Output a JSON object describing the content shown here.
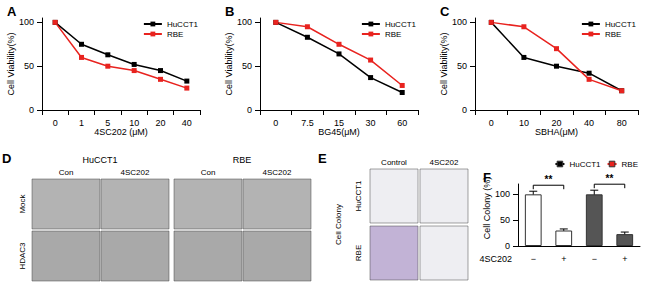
{
  "chart_data": [
    {
      "title": "A",
      "type": "line",
      "x_label": "4SC202 (μM)",
      "y_label": "Cell Viability(%)",
      "categories": [
        "0",
        "1",
        "5",
        "10",
        "20",
        "40"
      ],
      "series": [
        {
          "name": "HuCCT1",
          "color": "#000000",
          "marker": "square",
          "values": [
            100,
            75,
            63,
            52,
            45,
            33
          ]
        },
        {
          "name": "RBE",
          "color": "#e8231f",
          "marker": "square",
          "values": [
            100,
            60,
            50,
            45,
            35,
            25
          ]
        }
      ],
      "ylim": [
        0,
        105
      ],
      "yticks": [
        0,
        50,
        100
      ],
      "legend": "upper right",
      "grid": false
    },
    {
      "title": "B",
      "type": "line",
      "x_label": "BG45(μM)",
      "y_label": "Cell Viability(%)",
      "categories": [
        "0",
        "7.5",
        "15",
        "30",
        "60"
      ],
      "series": [
        {
          "name": "HuCCT1",
          "color": "#000000",
          "marker": "square",
          "values": [
            100,
            83,
            64,
            37,
            20
          ]
        },
        {
          "name": "RBE",
          "color": "#e8231f",
          "marker": "square",
          "values": [
            100,
            95,
            75,
            57,
            28
          ]
        }
      ],
      "ylim": [
        0,
        105
      ],
      "yticks": [
        0,
        50,
        100
      ],
      "legend": "upper right",
      "grid": false
    },
    {
      "title": "C",
      "type": "line",
      "x_label": "SBHA(μM)",
      "y_label": "Cell Viability(%)",
      "categories": [
        "0",
        "10",
        "20",
        "40",
        "80"
      ],
      "series": [
        {
          "name": "HuCCT1",
          "color": "#000000",
          "marker": "square",
          "values": [
            100,
            60,
            50,
            42,
            22
          ]
        },
        {
          "name": "RBE",
          "color": "#e8231f",
          "marker": "square",
          "values": [
            100,
            95,
            70,
            35,
            22
          ]
        }
      ],
      "ylim": [
        0,
        105
      ],
      "yticks": [
        0,
        50,
        100
      ],
      "legend": "upper right",
      "grid": false
    },
    {
      "title": "F",
      "type": "bar",
      "x_label": "4SC202",
      "y_label": "Cell Colony (%)",
      "categories": [
        "−",
        "+",
        "−",
        "+"
      ],
      "series": [
        {
          "name": "HuCCT1",
          "color": "#ffffff",
          "values": [
            100,
            30,
            null,
            null
          ],
          "errors": [
            6,
            3,
            null,
            null
          ]
        },
        {
          "name": "RBE",
          "color": "#555555",
          "values": [
            null,
            null,
            100,
            23
          ],
          "errors": [
            null,
            null,
            8,
            4
          ]
        }
      ],
      "ylim": [
        0,
        120
      ],
      "yticks": [
        0,
        50,
        100
      ],
      "legend": "upper right",
      "grid": false,
      "annotations": [
        {
          "text": "**",
          "series": "HuCCT1"
        },
        {
          "text": "**",
          "series": "RBE"
        }
      ]
    }
  ],
  "images": [
    {
      "panel": "D",
      "columns": [
        {
          "label": "HuCCT1",
          "sub": [
            "Con",
            "4SC202"
          ]
        },
        {
          "label": "RBE",
          "sub": [
            "Con",
            "4SC202"
          ]
        }
      ],
      "rows": [
        "Mock",
        "HDAC3"
      ]
    },
    {
      "panel": "E",
      "side": "Cell Colony",
      "columns": [
        "Control",
        "4SC202"
      ],
      "rows": [
        "HuCCT1",
        "RBE"
      ]
    }
  ]
}
